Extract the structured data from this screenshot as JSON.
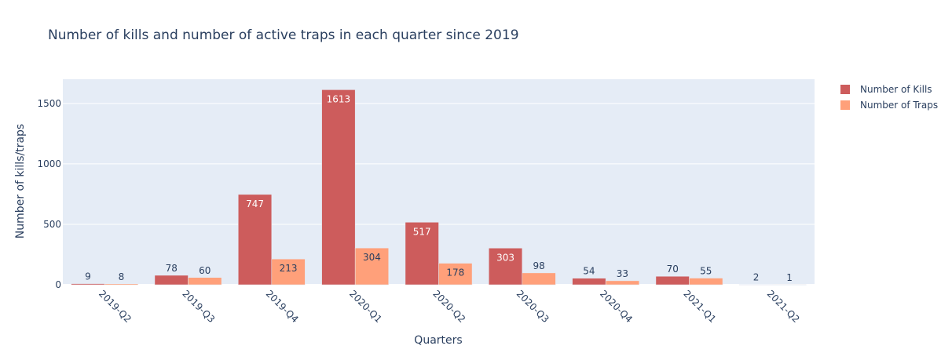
{
  "chart_data": {
    "type": "bar",
    "title": "Number of kills and number of active traps in each quarter since 2019",
    "xlabel": "Quarters",
    "ylabel": "Number of kills/traps",
    "categories": [
      "2019-Q2",
      "2019-Q3",
      "2019-Q4",
      "2020-Q1",
      "2020-Q2",
      "2020-Q3",
      "2020-Q4",
      "2021-Q1",
      "2021-Q2"
    ],
    "series": [
      {
        "name": "Number of Kills",
        "color": "#cd5c5c",
        "values": [
          9,
          78,
          747,
          1613,
          517,
          303,
          54,
          70,
          2
        ]
      },
      {
        "name": "Number of Traps",
        "color": "#ffa07a",
        "values": [
          8,
          60,
          213,
          304,
          178,
          98,
          33,
          55,
          1
        ]
      }
    ],
    "ylim": [
      0,
      1700
    ],
    "yticks": [
      0,
      500,
      1000,
      1500
    ],
    "grid": true,
    "legend_position": "top-right",
    "background_color": "#e5ecf6"
  }
}
